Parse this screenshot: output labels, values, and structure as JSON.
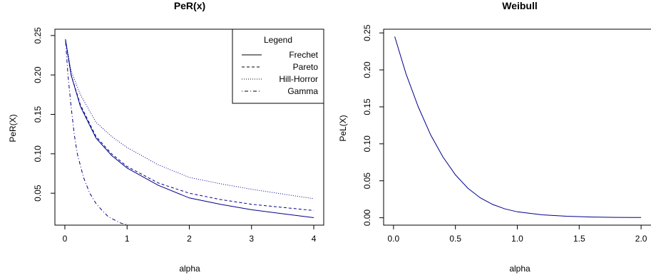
{
  "chart_data": [
    {
      "type": "line",
      "title": "PeR(x)",
      "xlabel": "alpha",
      "ylabel": "PeR(X)",
      "xlim": [
        -0.16,
        4.16
      ],
      "ylim": [
        0.0095,
        0.258
      ],
      "xticks": [
        0,
        1,
        2,
        3,
        4
      ],
      "yticks": [
        0.05,
        0.1,
        0.15,
        0.2,
        0.25
      ],
      "xtick_labels": [
        "0",
        "1",
        "2",
        "3",
        "4"
      ],
      "ytick_labels": [
        "0.05",
        "0.10",
        "0.15",
        "0.20",
        "0.25"
      ],
      "legend": {
        "title": "Legend",
        "position": "top-right",
        "entries": [
          "Frechet",
          "Pareto",
          "Hill-Horror",
          "Gamma"
        ]
      },
      "series": [
        {
          "name": "Frechet",
          "color": "#00008b",
          "dash": "solid",
          "x": [
            0.01,
            0.1,
            0.25,
            0.5,
            0.75,
            1.0,
            1.5,
            2.0,
            2.5,
            3.0,
            3.5,
            4.0
          ],
          "y": [
            0.245,
            0.2,
            0.16,
            0.12,
            0.098,
            0.082,
            0.06,
            0.044,
            0.036,
            0.029,
            0.024,
            0.019
          ]
        },
        {
          "name": "Pareto",
          "color": "#00008b",
          "dash": "dashed",
          "x": [
            0.01,
            0.1,
            0.25,
            0.5,
            0.75,
            1.0,
            1.5,
            2.0,
            2.5,
            3.0,
            3.5,
            4.0
          ],
          "y": [
            0.245,
            0.2,
            0.162,
            0.122,
            0.1,
            0.084,
            0.063,
            0.05,
            0.042,
            0.036,
            0.032,
            0.028
          ]
        },
        {
          "name": "Hill-Horror",
          "color": "#00008b",
          "dash": "dotted",
          "x": [
            0.01,
            0.1,
            0.25,
            0.5,
            0.75,
            1.0,
            1.5,
            2.0,
            2.5,
            3.0,
            3.5,
            4.0
          ],
          "y": [
            0.245,
            0.205,
            0.175,
            0.14,
            0.122,
            0.108,
            0.086,
            0.07,
            0.062,
            0.055,
            0.049,
            0.043
          ]
        },
        {
          "name": "Gamma",
          "color": "#00008b",
          "dash": "dotdash",
          "x": [
            0.01,
            0.05,
            0.1,
            0.15,
            0.2,
            0.3,
            0.4,
            0.5,
            0.6,
            0.7,
            0.8,
            0.9,
            1.0
          ],
          "y": [
            0.245,
            0.2,
            0.16,
            0.125,
            0.1,
            0.07,
            0.05,
            0.037,
            0.028,
            0.02,
            0.016,
            0.012,
            0.01
          ]
        }
      ]
    },
    {
      "type": "line",
      "title": "Weibull",
      "xlabel": "alpha",
      "ylabel": "PeL(X)",
      "xlim": [
        -0.08,
        2.08
      ],
      "ylim": [
        -0.01,
        0.255
      ],
      "xticks": [
        0.0,
        0.5,
        1.0,
        1.5,
        2.0
      ],
      "yticks": [
        0.0,
        0.05,
        0.1,
        0.15,
        0.2,
        0.25
      ],
      "xtick_labels": [
        "0.0",
        "0.5",
        "1.0",
        "1.5",
        "2.0"
      ],
      "ytick_labels": [
        "0.00",
        "0.05",
        "0.10",
        "0.15",
        "0.20",
        "0.25"
      ],
      "series": [
        {
          "name": "",
          "color": "#00008b",
          "dash": "solid",
          "x": [
            0.01,
            0.1,
            0.2,
            0.3,
            0.4,
            0.5,
            0.6,
            0.7,
            0.8,
            0.9,
            1.0,
            1.2,
            1.4,
            1.6,
            1.8,
            2.0
          ],
          "y": [
            0.245,
            0.195,
            0.15,
            0.112,
            0.082,
            0.058,
            0.04,
            0.027,
            0.018,
            0.012,
            0.008,
            0.004,
            0.002,
            0.001,
            0.0005,
            0.0003
          ]
        }
      ]
    }
  ]
}
